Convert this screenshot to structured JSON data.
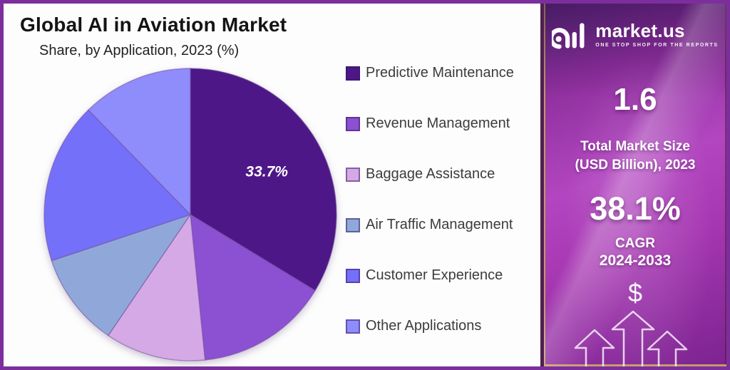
{
  "header": {
    "title": "Global AI in Aviation Market",
    "subtitle": "Share, by Application, 2023 (%)"
  },
  "chart_data": {
    "type": "pie",
    "title": "Global AI in Aviation Market",
    "subtitle": "Share, by Application, 2023 (%)",
    "units": "%",
    "start_angle_deg": 0,
    "direction": "clockwise",
    "legend_position": "right",
    "slices": [
      {
        "name": "Predictive Maintenance",
        "value": 33.7,
        "label": "33.7%",
        "color": "#4d1788"
      },
      {
        "name": "Revenue Management",
        "value": 14.7,
        "label": "",
        "color": "#8c50d2"
      },
      {
        "name": "Baggage Assistance",
        "value": 11.1,
        "label": "",
        "color": "#d5a9e6"
      },
      {
        "name": "Air Traffic Management",
        "value": 10.4,
        "label": "",
        "color": "#8fa8d9"
      },
      {
        "name": "Customer Experience",
        "value": 17.8,
        "label": "",
        "color": "#7570fa"
      },
      {
        "name": "Other Applications",
        "value": 12.3,
        "label": "",
        "color": "#8f8cfc"
      }
    ]
  },
  "sidebar": {
    "brand": "market.us",
    "tagline": "ONE STOP SHOP FOR THE REPORTS",
    "market_size": {
      "value": "1.6",
      "caption_line1": "Total Market Size",
      "caption_line2": "(USD Billion), 2023"
    },
    "cagr": {
      "value": "38.1%",
      "label": "CAGR",
      "period": "2024-2033"
    },
    "currency_symbol": "$",
    "colors": {
      "background_top": "#5e2a7e",
      "background_mid": "#b246c0",
      "background_bottom": "#7b2391",
      "gold_border": "#c49a68"
    }
  },
  "frame": {
    "border_color": "#7c2f9c",
    "chart_background": "#fdfdfd"
  }
}
